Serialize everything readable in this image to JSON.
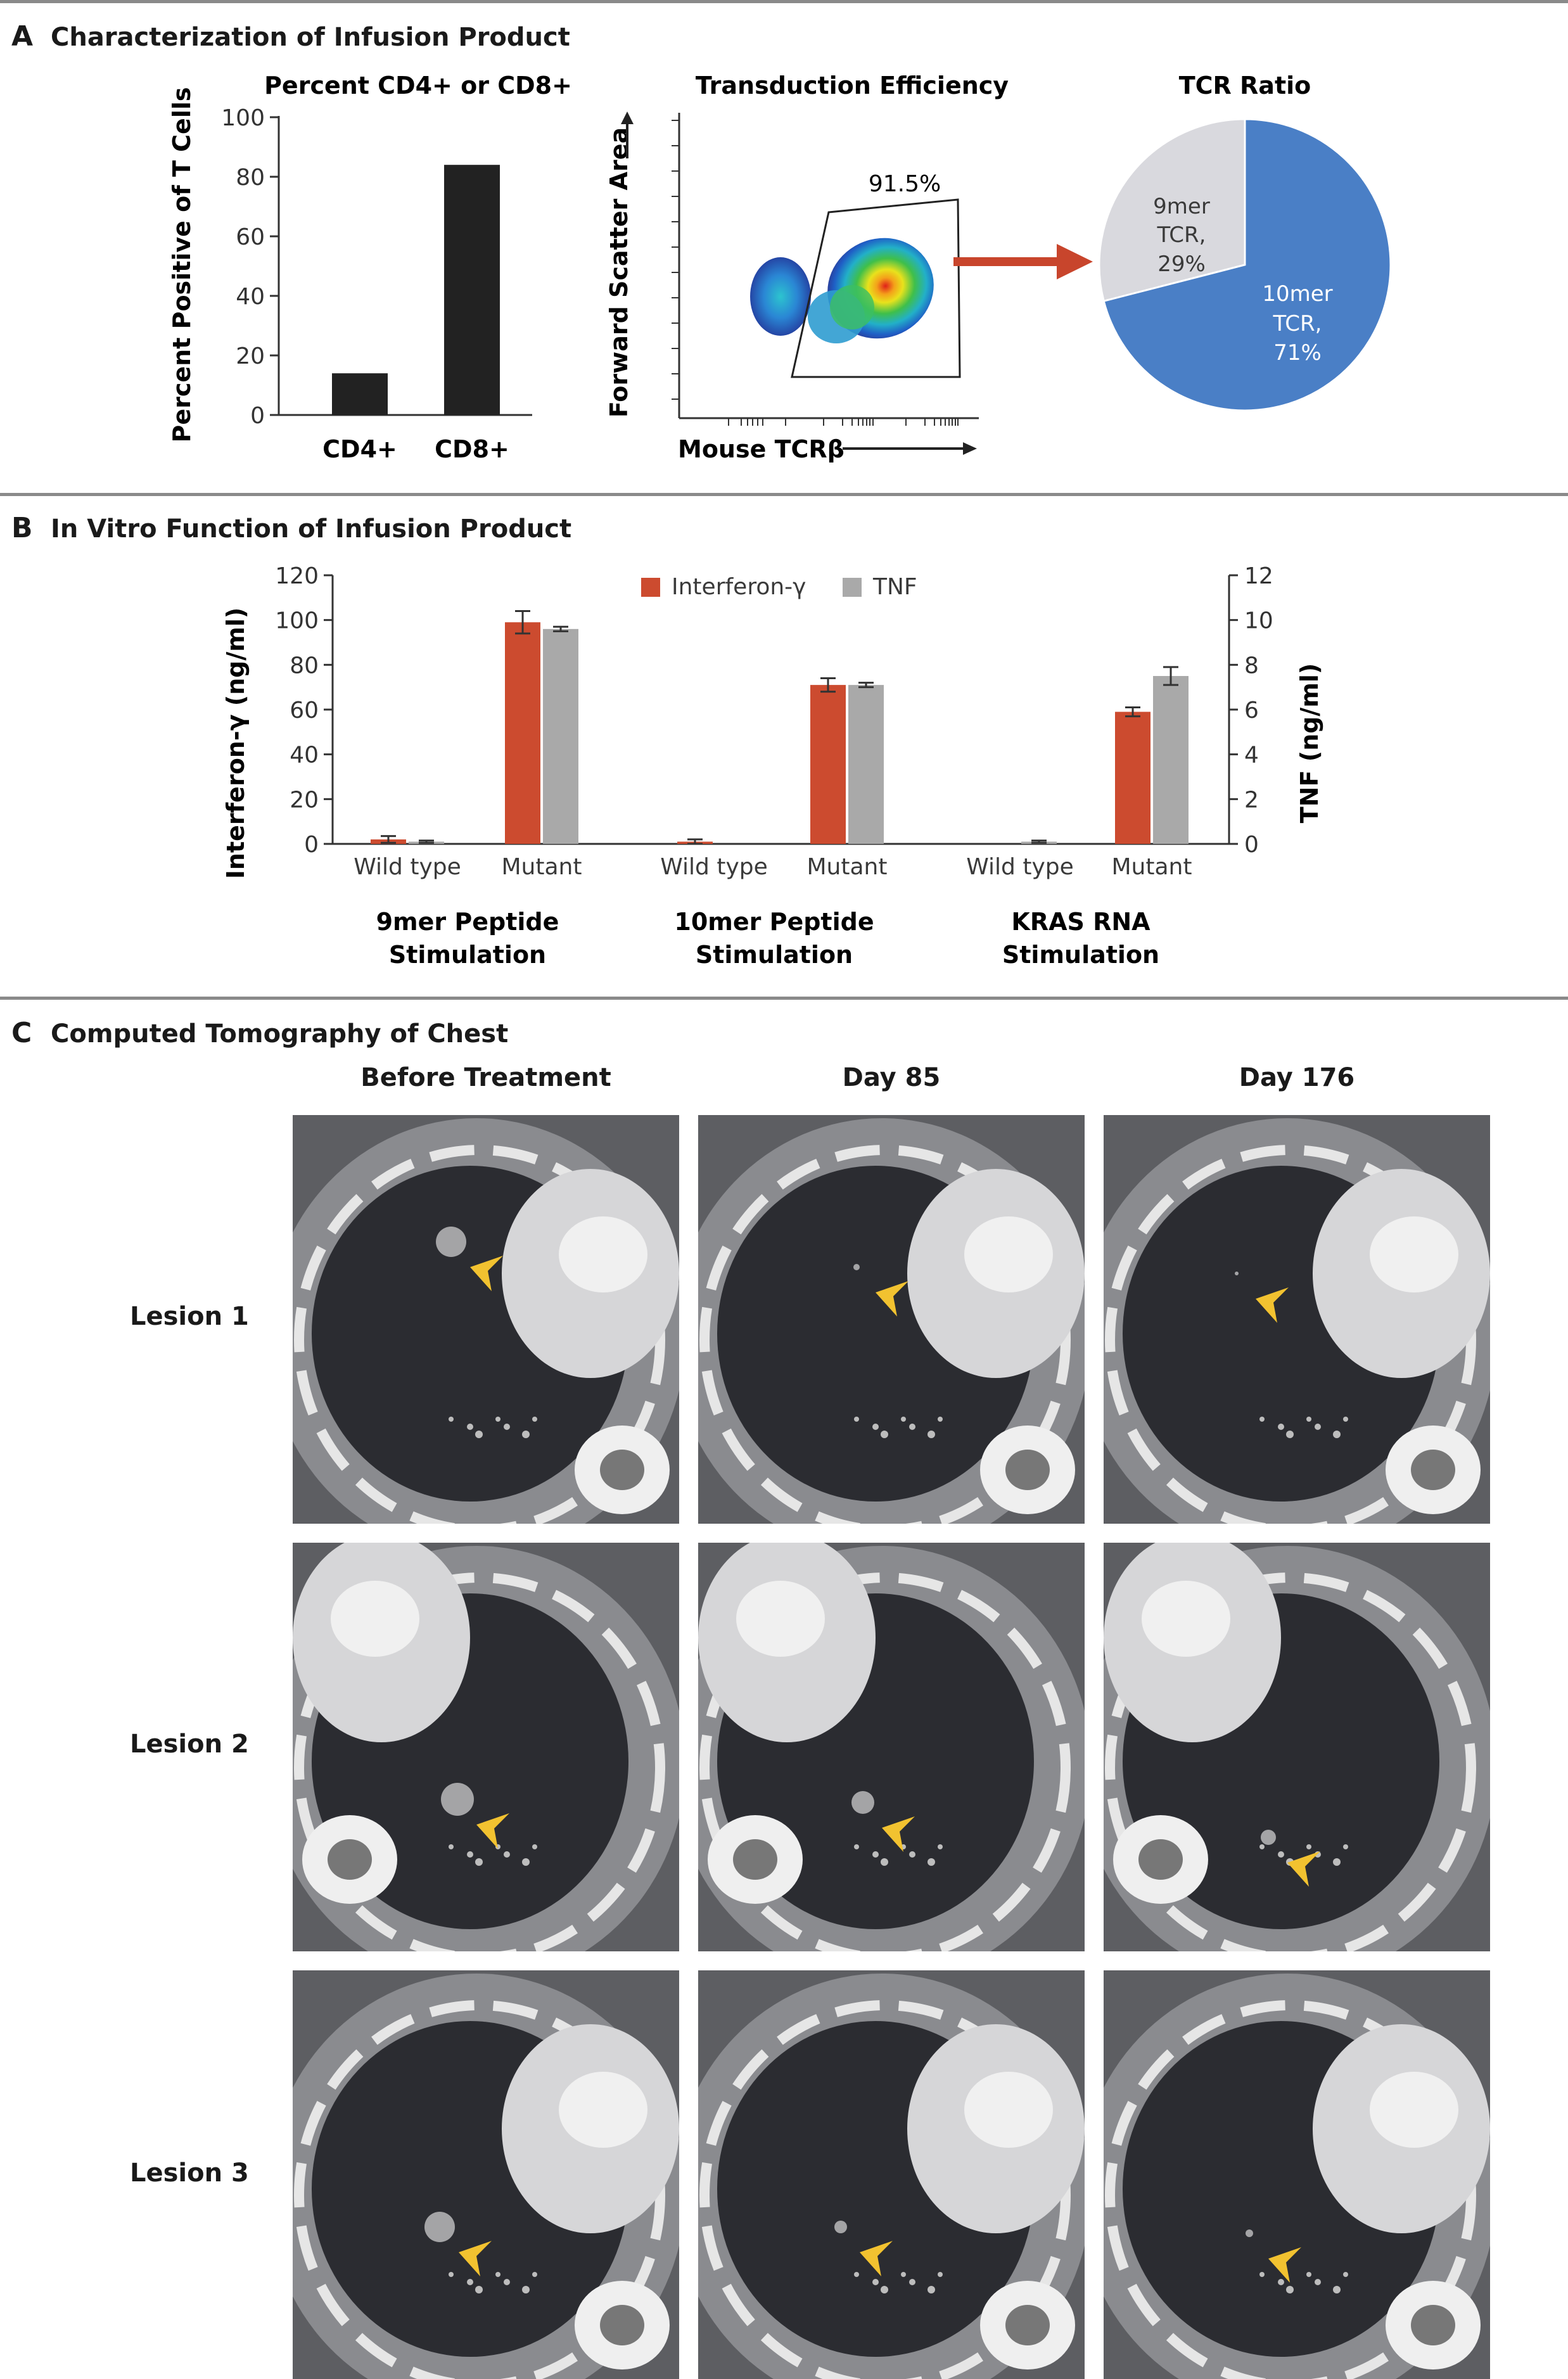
{
  "panelA": {
    "letter": "A",
    "title": "Characterization of Infusion Product",
    "bar": {
      "title": "Percent CD4+ or CD8+",
      "ylabel": "Percent Positive of T Cells",
      "ticks": [
        "0",
        "20",
        "40",
        "60",
        "80",
        "100"
      ],
      "color": "#222222"
    },
    "flow": {
      "title": "Transduction Efficiency",
      "ylabel": "Forward Scatter Area",
      "xlabel": "Mouse TCRβ",
      "gate_label": "91.5%",
      "arrow_color": "#c8452c"
    },
    "pie": {
      "title": "TCR Ratio",
      "slice_9mer": [
        "9mer",
        "TCR,",
        "29%"
      ],
      "slice_10mer": [
        "10mer",
        "TCR,",
        "71%"
      ]
    }
  },
  "panelB": {
    "letter": "B",
    "title": "In Vitro Function of Infusion Product",
    "ylabel_left": "Interferon-γ (ng/ml)",
    "ylabel_right": "TNF (ng/ml)",
    "left_ticks": [
      "0",
      "20",
      "40",
      "60",
      "80",
      "100",
      "120"
    ],
    "right_ticks": [
      "0",
      "2",
      "4",
      "6",
      "8",
      "10",
      "12"
    ],
    "legend": [
      {
        "label": "Interferon-γ",
        "color": "#cc4b2f"
      },
      {
        "label": "TNF",
        "color": "#a9a9a9"
      }
    ],
    "groups": [
      {
        "line1": "9mer Peptide",
        "line2": "Stimulation"
      },
      {
        "line1": "10mer Peptide",
        "line2": "Stimulation"
      },
      {
        "line1": "KRAS RNA",
        "line2": "Stimulation"
      }
    ]
  },
  "panelC": {
    "letter": "C",
    "title": "Computed Tomography of Chest",
    "columns": [
      "Before Treatment",
      "Day 85",
      "Day 176"
    ],
    "rows": [
      "Lesion 1",
      "Lesion 2",
      "Lesion 3"
    ],
    "arrowhead_color": "#f2c230"
  },
  "chart_data": [
    {
      "type": "bar",
      "title": "Percent CD4+ or CD8+",
      "ylabel": "Percent Positive of T Cells",
      "categories": [
        "CD4+",
        "CD8+"
      ],
      "values": [
        14,
        84
      ],
      "ylim": [
        0,
        100
      ]
    },
    {
      "type": "pie",
      "title": "TCR Ratio",
      "categories": [
        "9mer TCR",
        "10mer TCR"
      ],
      "values": [
        29,
        71
      ],
      "colors": [
        "#d9d9de",
        "#4a7fc6"
      ]
    },
    {
      "type": "bar",
      "categories": [
        "Wild type",
        "Mutant",
        "Wild type",
        "Mutant",
        "Wild type",
        "Mutant"
      ],
      "ylabel": "Interferon-γ (ng/ml)",
      "y2label": "TNF (ng/ml)",
      "ylim": [
        0,
        120
      ],
      "y2lim": [
        0,
        12
      ],
      "series": [
        {
          "name": "Interferon-γ",
          "axis": "left",
          "values": [
            2,
            99,
            1,
            71,
            0,
            59
          ],
          "errors": [
            1.5,
            5,
            1,
            3,
            0,
            2
          ]
        },
        {
          "name": "TNF",
          "axis": "right",
          "values": [
            0.1,
            9.6,
            0,
            7.1,
            0.1,
            7.5
          ],
          "errors": [
            0.05,
            0.1,
            0,
            0.1,
            0.05,
            0.4
          ]
        }
      ]
    }
  ]
}
